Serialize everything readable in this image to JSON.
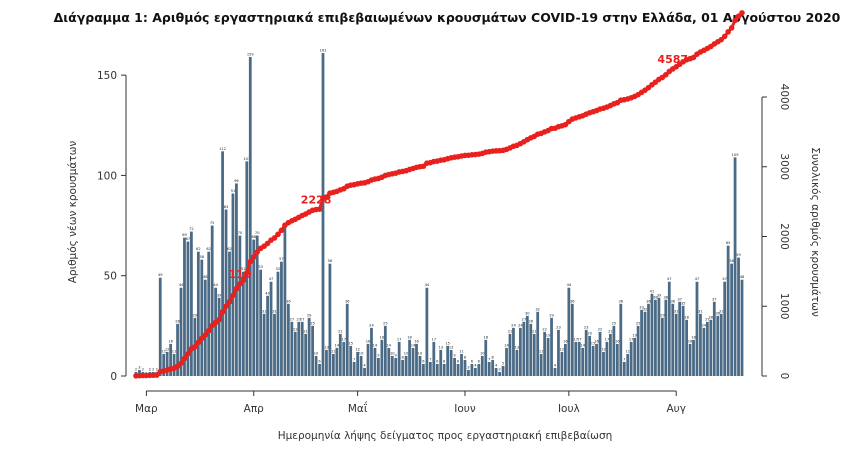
{
  "chart_data": {
    "type": "bar+line",
    "title": "Διάγραμμα 1: Αριθμός εργαστηριακά επιβεβαιωμένων κρουσμάτων COVID-19 στην Ελλάδα, 01 Αυγούστου 2020",
    "xlabel": "Ημερομηνία λήψης δείγματος προς εργαστηριακή επιβεβαίωση",
    "ylabel_left": "Αριθμός νέων κρουσμάτων",
    "ylabel_right": "Συνολικός αριθμός κρουσμάτων",
    "x_tick_labels": [
      "Μαρ",
      "Απρ",
      "Μαΐ",
      "Ιουν",
      "Ιουλ",
      "Αυγ"
    ],
    "x_tick_day_index": [
      3,
      34,
      64,
      95,
      125,
      156
    ],
    "ylim_left": [
      0,
      170
    ],
    "ylim_right": [
      0,
      4500
    ],
    "yticks_left": [
      0,
      50,
      100,
      150
    ],
    "yticks_right": [
      0,
      1000,
      2000,
      3000,
      4000
    ],
    "grid": false,
    "bar_color": "#4a6a85",
    "line_color": "#e8211f",
    "annotations": [
      {
        "label": "110",
        "day_index": 30
      },
      {
        "label": "2228",
        "day_index": 52
      },
      {
        "label": "4587",
        "day_index": 155
      }
    ],
    "bars": [
      {
        "day_index": 0,
        "value": 2
      },
      {
        "day_index": 1,
        "value": 3
      },
      {
        "day_index": 2,
        "value": 2
      },
      {
        "day_index": 3,
        "value": 0
      },
      {
        "day_index": 4,
        "value": 2
      },
      {
        "day_index": 5,
        "value": 2
      },
      {
        "day_index": 6,
        "value": 2
      },
      {
        "day_index": 7,
        "value": 49
      },
      {
        "day_index": 8,
        "value": 11
      },
      {
        "day_index": 9,
        "value": 12
      },
      {
        "day_index": 10,
        "value": 16
      },
      {
        "day_index": 11,
        "value": 11
      },
      {
        "day_index": 12,
        "value": 26
      },
      {
        "day_index": 13,
        "value": 44
      },
      {
        "day_index": 14,
        "value": 69
      },
      {
        "day_index": 15,
        "value": 67
      },
      {
        "day_index": 16,
        "value": 72
      },
      {
        "day_index": 17,
        "value": 29
      },
      {
        "day_index": 18,
        "value": 62
      },
      {
        "day_index": 19,
        "value": 58
      },
      {
        "day_index": 20,
        "value": 48
      },
      {
        "day_index": 21,
        "value": 62
      },
      {
        "day_index": 22,
        "value": 75
      },
      {
        "day_index": 23,
        "value": 44
      },
      {
        "day_index": 24,
        "value": 39
      },
      {
        "day_index": 25,
        "value": 112
      },
      {
        "day_index": 26,
        "value": 83
      },
      {
        "day_index": 27,
        "value": 62
      },
      {
        "day_index": 28,
        "value": 91
      },
      {
        "day_index": 29,
        "value": 96
      },
      {
        "day_index": 30,
        "value": 70
      },
      {
        "day_index": 31,
        "value": 52
      },
      {
        "day_index": 32,
        "value": 107
      },
      {
        "day_index": 33,
        "value": 159
      },
      {
        "day_index": 34,
        "value": 68
      },
      {
        "day_index": 35,
        "value": 70
      },
      {
        "day_index": 36,
        "value": 53
      },
      {
        "day_index": 37,
        "value": 31
      },
      {
        "day_index": 38,
        "value": 40
      },
      {
        "day_index": 39,
        "value": 47
      },
      {
        "day_index": 40,
        "value": 31
      },
      {
        "day_index": 41,
        "value": 52
      },
      {
        "day_index": 42,
        "value": 57
      },
      {
        "day_index": 43,
        "value": 74
      },
      {
        "day_index": 44,
        "value": 36
      },
      {
        "day_index": 45,
        "value": 27
      },
      {
        "day_index": 46,
        "value": 22
      },
      {
        "day_index": 47,
        "value": 27
      },
      {
        "day_index": 48,
        "value": 27
      },
      {
        "day_index": 49,
        "value": 21
      },
      {
        "day_index": 50,
        "value": 29
      },
      {
        "day_index": 51,
        "value": 25
      },
      {
        "day_index": 52,
        "value": 10
      },
      {
        "day_index": 53,
        "value": 6
      },
      {
        "day_index": 54,
        "value": 161
      },
      {
        "day_index": 55,
        "value": 13
      },
      {
        "day_index": 56,
        "value": 56
      },
      {
        "day_index": 57,
        "value": 11
      },
      {
        "day_index": 58,
        "value": 14
      },
      {
        "day_index": 59,
        "value": 21
      },
      {
        "day_index": 60,
        "value": 17
      },
      {
        "day_index": 61,
        "value": 36
      },
      {
        "day_index": 62,
        "value": 15
      },
      {
        "day_index": 63,
        "value": 7
      },
      {
        "day_index": 64,
        "value": 12
      },
      {
        "day_index": 65,
        "value": 10
      },
      {
        "day_index": 66,
        "value": 4
      },
      {
        "day_index": 67,
        "value": 16
      },
      {
        "day_index": 68,
        "value": 24
      },
      {
        "day_index": 69,
        "value": 14
      },
      {
        "day_index": 70,
        "value": 9
      },
      {
        "day_index": 71,
        "value": 18
      },
      {
        "day_index": 72,
        "value": 25
      },
      {
        "day_index": 73,
        "value": 14
      },
      {
        "day_index": 74,
        "value": 10
      },
      {
        "day_index": 75,
        "value": 9
      },
      {
        "day_index": 76,
        "value": 17
      },
      {
        "day_index": 77,
        "value": 8
      },
      {
        "day_index": 78,
        "value": 10
      },
      {
        "day_index": 79,
        "value": 18
      },
      {
        "day_index": 80,
        "value": 14
      },
      {
        "day_index": 81,
        "value": 16
      },
      {
        "day_index": 82,
        "value": 10
      },
      {
        "day_index": 83,
        "value": 6
      },
      {
        "day_index": 84,
        "value": 44
      },
      {
        "day_index": 85,
        "value": 7
      },
      {
        "day_index": 86,
        "value": 17
      },
      {
        "day_index": 87,
        "value": 6
      },
      {
        "day_index": 88,
        "value": 13
      },
      {
        "day_index": 89,
        "value": 6
      },
      {
        "day_index": 90,
        "value": 15
      },
      {
        "day_index": 91,
        "value": 13
      },
      {
        "day_index": 92,
        "value": 9
      },
      {
        "day_index": 93,
        "value": 6
      },
      {
        "day_index": 94,
        "value": 11
      },
      {
        "day_index": 95,
        "value": 8
      },
      {
        "day_index": 96,
        "value": 3
      },
      {
        "day_index": 97,
        "value": 6
      },
      {
        "day_index": 98,
        "value": 4
      },
      {
        "day_index": 99,
        "value": 6
      },
      {
        "day_index": 100,
        "value": 10
      },
      {
        "day_index": 101,
        "value": 18
      },
      {
        "day_index": 102,
        "value": 7
      },
      {
        "day_index": 103,
        "value": 8
      },
      {
        "day_index": 104,
        "value": 4
      },
      {
        "day_index": 105,
        "value": 2
      },
      {
        "day_index": 106,
        "value": 5
      },
      {
        "day_index": 107,
        "value": 14
      },
      {
        "day_index": 108,
        "value": 21
      },
      {
        "day_index": 109,
        "value": 24
      },
      {
        "day_index": 110,
        "value": 13
      },
      {
        "day_index": 111,
        "value": 24
      },
      {
        "day_index": 112,
        "value": 27
      },
      {
        "day_index": 113,
        "value": 30
      },
      {
        "day_index": 114,
        "value": 26
      },
      {
        "day_index": 115,
        "value": 21
      },
      {
        "day_index": 116,
        "value": 32
      },
      {
        "day_index": 117,
        "value": 11
      },
      {
        "day_index": 118,
        "value": 22
      },
      {
        "day_index": 119,
        "value": 19
      },
      {
        "day_index": 120,
        "value": 29
      },
      {
        "day_index": 121,
        "value": 4
      },
      {
        "day_index": 122,
        "value": 23
      },
      {
        "day_index": 123,
        "value": 12
      },
      {
        "day_index": 124,
        "value": 16
      },
      {
        "day_index": 125,
        "value": 44
      },
      {
        "day_index": 126,
        "value": 36
      },
      {
        "day_index": 127,
        "value": 17
      },
      {
        "day_index": 128,
        "value": 17
      },
      {
        "day_index": 129,
        "value": 14
      },
      {
        "day_index": 130,
        "value": 23
      },
      {
        "day_index": 131,
        "value": 20
      },
      {
        "day_index": 132,
        "value": 15
      },
      {
        "day_index": 133,
        "value": 16
      },
      {
        "day_index": 134,
        "value": 22
      },
      {
        "day_index": 135,
        "value": 12
      },
      {
        "day_index": 136,
        "value": 17
      },
      {
        "day_index": 137,
        "value": 21
      },
      {
        "day_index": 138,
        "value": 25
      },
      {
        "day_index": 139,
        "value": 16
      },
      {
        "day_index": 140,
        "value": 36
      },
      {
        "day_index": 141,
        "value": 7
      },
      {
        "day_index": 142,
        "value": 11
      },
      {
        "day_index": 143,
        "value": 17
      },
      {
        "day_index": 144,
        "value": 19
      },
      {
        "day_index": 145,
        "value": 25
      },
      {
        "day_index": 146,
        "value": 33
      },
      {
        "day_index": 147,
        "value": 32
      },
      {
        "day_index": 148,
        "value": 36
      },
      {
        "day_index": 149,
        "value": 41
      },
      {
        "day_index": 150,
        "value": 38
      },
      {
        "day_index": 151,
        "value": 39
      },
      {
        "day_index": 152,
        "value": 29
      },
      {
        "day_index": 153,
        "value": 38
      },
      {
        "day_index": 154,
        "value": 47
      },
      {
        "day_index": 155,
        "value": 36
      },
      {
        "day_index": 156,
        "value": 31
      },
      {
        "day_index": 157,
        "value": 37
      },
      {
        "day_index": 158,
        "value": 35
      },
      {
        "day_index": 159,
        "value": 28
      },
      {
        "day_index": 160,
        "value": 16
      },
      {
        "day_index": 161,
        "value": 18
      },
      {
        "day_index": 162,
        "value": 47
      },
      {
        "day_index": 163,
        "value": 31
      },
      {
        "day_index": 164,
        "value": 24
      },
      {
        "day_index": 165,
        "value": 27
      },
      {
        "day_index": 166,
        "value": 28
      },
      {
        "day_index": 167,
        "value": 37
      },
      {
        "day_index": 168,
        "value": 30
      },
      {
        "day_index": 169,
        "value": 31
      },
      {
        "day_index": 170,
        "value": 47
      },
      {
        "day_index": 171,
        "value": 65
      },
      {
        "day_index": 172,
        "value": 56
      },
      {
        "day_index": 173,
        "value": 109
      },
      {
        "day_index": 174,
        "value": 59
      },
      {
        "day_index": 175,
        "value": 48
      }
    ]
  }
}
